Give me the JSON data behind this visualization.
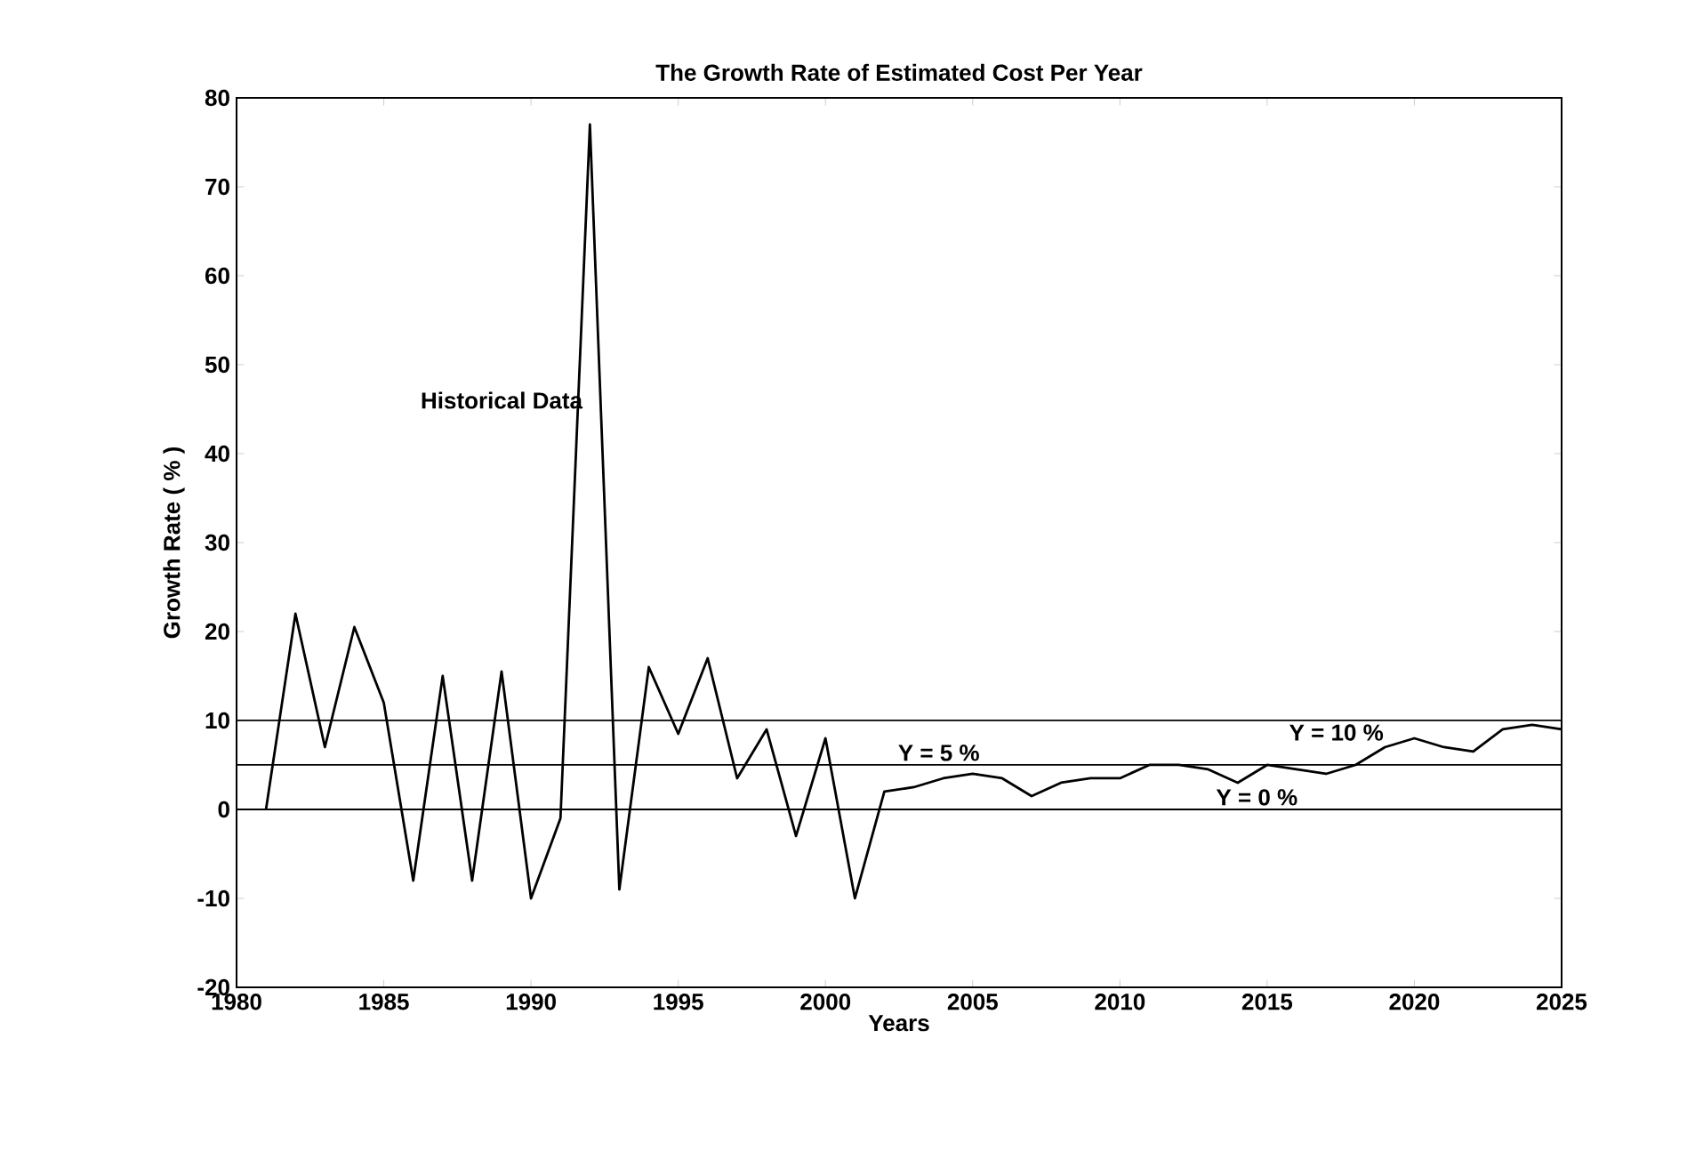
{
  "chart_data": {
    "type": "line",
    "title": "The Growth Rate of Estimated Cost Per Year",
    "xlabel": "Years",
    "ylabel": "Growth Rate ( % )",
    "x": [
      1981,
      1982,
      1983,
      1984,
      1985,
      1986,
      1987,
      1988,
      1989,
      1990,
      1991,
      1992,
      1993,
      1994,
      1995,
      1996,
      1997,
      1998,
      1999,
      2000,
      2001,
      2002,
      2003,
      2004,
      2005,
      2006,
      2007,
      2008,
      2009,
      2010,
      2011,
      2012,
      2013,
      2014,
      2015,
      2016,
      2017,
      2018,
      2019,
      2020,
      2021,
      2022,
      2023,
      2024,
      2025
    ],
    "values": [
      0,
      22,
      7,
      20.5,
      12,
      -8,
      15,
      -8,
      15.5,
      -10,
      -1,
      77,
      -9,
      16,
      8.5,
      17,
      3.5,
      9,
      -3,
      8,
      -10,
      2,
      2.5,
      3.5,
      4,
      3.5,
      1.5,
      3,
      3.5,
      3.5,
      5,
      5,
      4.5,
      3,
      5,
      4.5,
      4,
      5,
      7,
      8,
      7,
      6.5,
      9,
      9.5,
      9
    ],
    "color": "#000000",
    "xlim": [
      1980,
      2025
    ],
    "xticks": [
      1980,
      1985,
      1990,
      1995,
      2000,
      2005,
      2010,
      2015,
      2020,
      2025
    ],
    "ylim": [
      -20,
      80
    ],
    "yticks": [
      -20,
      -10,
      0,
      10,
      20,
      30,
      40,
      50,
      60,
      70,
      80
    ],
    "ref_lines": [
      {
        "axis": "y",
        "value": 10,
        "label": "Y = 10 %"
      },
      {
        "axis": "y",
        "value": 5,
        "label": "Y = 5 %"
      },
      {
        "axis": "y",
        "value": 0,
        "label": "Y = 0 %"
      }
    ],
    "annotations": [
      "Historical Data"
    ]
  }
}
